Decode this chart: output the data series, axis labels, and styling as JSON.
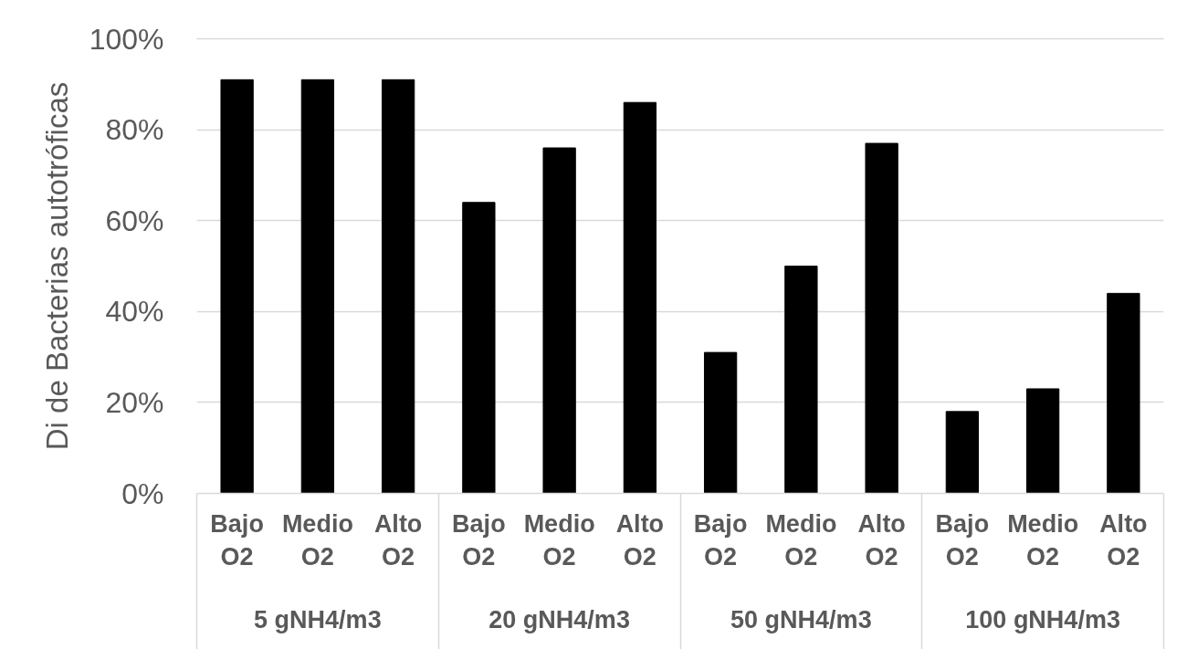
{
  "chart_data": {
    "type": "bar",
    "categories": [
      "Bajo O2",
      "Medio O2",
      "Alto O2",
      "Bajo O2",
      "Medio O2",
      "Alto O2",
      "Bajo O2",
      "Medio O2",
      "Alto O2",
      "Bajo O2",
      "Medio O2",
      "Alto O2"
    ],
    "values": [
      91,
      91,
      91,
      64,
      76,
      86,
      31,
      50,
      77,
      18,
      23,
      44
    ],
    "color": "#000000",
    "ylabel": "Di de Bacterias autotróficas",
    "ylim": [
      0,
      100
    ],
    "yticks": [
      {
        "value": 0,
        "label": "0%"
      },
      {
        "value": 20,
        "label": "20%"
      },
      {
        "value": 40,
        "label": "40%"
      },
      {
        "value": 60,
        "label": "60%"
      },
      {
        "value": 80,
        "label": "80%"
      },
      {
        "value": 100,
        "label": "100%"
      }
    ],
    "grid": "y",
    "annotations": [
      "5 gNH4/m3",
      "20 gNH4/m3",
      "50 gNH4/m3",
      "100 gNH4/m3"
    ]
  }
}
